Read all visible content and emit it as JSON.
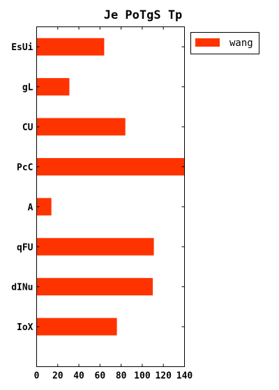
{
  "chart_data": {
    "type": "bar",
    "orientation": "horizontal",
    "title": "Je PoTgS Tp",
    "categories": [
      "EsUi",
      "gL",
      "CU",
      "PcC",
      "A",
      "qFU",
      "dINu",
      "IoX"
    ],
    "series": [
      {
        "name": "wang",
        "color": "#ff3300",
        "values": [
          64,
          31,
          84,
          140,
          14,
          111,
          110,
          76
        ]
      }
    ],
    "xlim": [
      0,
      140
    ],
    "xticks": [
      0,
      20,
      40,
      60,
      80,
      100,
      120,
      140
    ],
    "grid": false,
    "legend_position": "outside-top-right"
  }
}
